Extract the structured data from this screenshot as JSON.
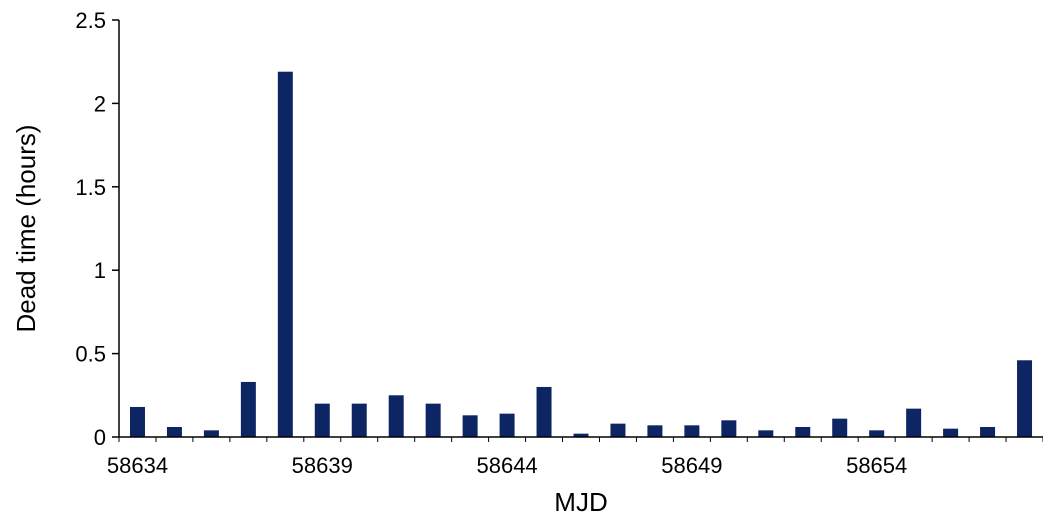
{
  "chart_data": {
    "type": "bar",
    "title": "",
    "xlabel": "MJD",
    "ylabel": "Dead time (hours)",
    "ylim": [
      0,
      2.5
    ],
    "yticks": [
      "0",
      "0.5",
      "1",
      "1.5",
      "2",
      "2.5"
    ],
    "xtick_labels": [
      "58634",
      "58639",
      "58644",
      "58649",
      "58654"
    ],
    "categories": [
      58634,
      58635,
      58636,
      58637,
      58638,
      58639,
      58640,
      58641,
      58642,
      58643,
      58644,
      58645,
      58646,
      58647,
      58648,
      58649,
      58650,
      58651,
      58652,
      58653,
      58654,
      58655,
      58656,
      58657,
      58658
    ],
    "values": [
      0.18,
      0.06,
      0.04,
      0.33,
      2.19,
      0.2,
      0.2,
      0.25,
      0.2,
      0.13,
      0.14,
      0.3,
      0.02,
      0.08,
      0.07,
      0.07,
      0.1,
      0.04,
      0.06,
      0.11,
      0.04,
      0.17,
      0.05,
      0.06,
      0.46
    ],
    "bar_color": "#0d2562",
    "grid": false,
    "legend": "none"
  }
}
